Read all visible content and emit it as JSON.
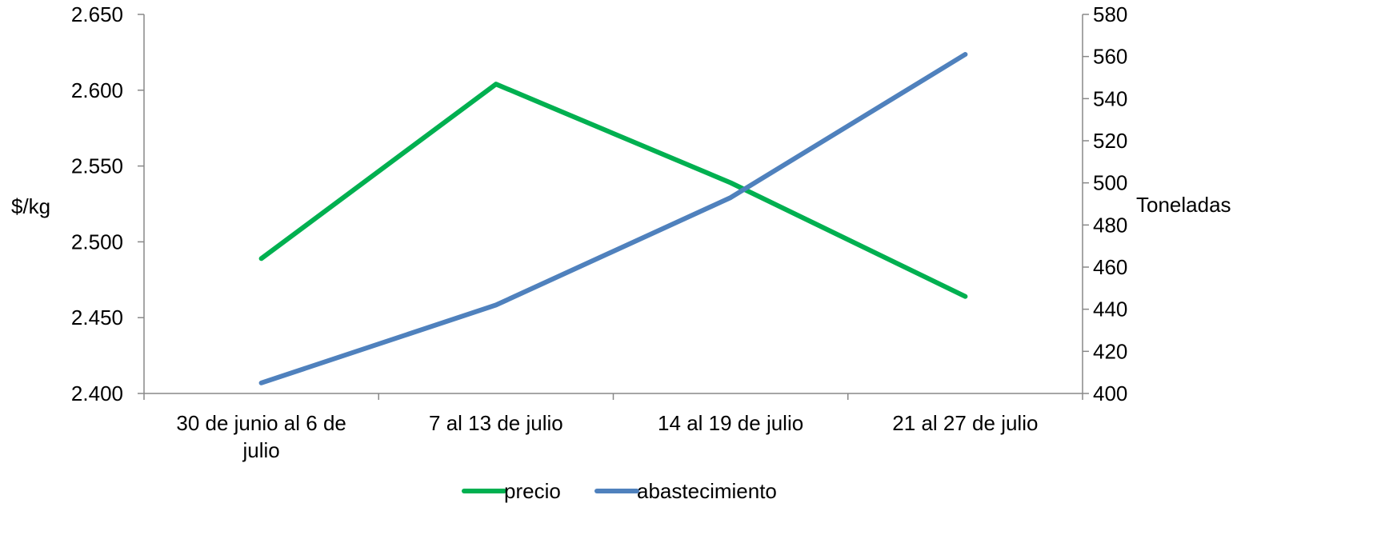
{
  "chart_data": {
    "type": "line",
    "categories": [
      "30 de junio al 6 de julio",
      "7 al 13 de julio",
      "14 al 19 de julio",
      "21 al 27 de julio"
    ],
    "category_lines": [
      [
        "30 de junio al 6 de",
        "julio"
      ],
      [
        "7 al 13 de julio"
      ],
      [
        "14 al 19 de julio"
      ],
      [
        "21 al 27 de julio"
      ]
    ],
    "y_left": {
      "label": "$/kg",
      "range": [
        2400,
        2650
      ],
      "ticks": [
        2400,
        2450,
        2500,
        2550,
        2600,
        2650
      ],
      "tick_labels": [
        "2.400",
        "2.450",
        "2.500",
        "2.550",
        "2.600",
        "2.650"
      ]
    },
    "y_right": {
      "label": "Toneladas",
      "range": [
        400,
        580
      ],
      "ticks": [
        400,
        420,
        440,
        460,
        480,
        500,
        520,
        540,
        560,
        580
      ],
      "tick_labels": [
        "400",
        "420",
        "440",
        "460",
        "480",
        "500",
        "520",
        "540",
        "560",
        "580"
      ]
    },
    "series": [
      {
        "name": "precio",
        "axis": "left",
        "color": "#00B050",
        "values": [
          2489,
          2604,
          2539,
          2464
        ]
      },
      {
        "name": "abastecimiento",
        "axis": "right",
        "color": "#4F81BD",
        "values": [
          405,
          442,
          493,
          561
        ]
      }
    ],
    "grid": false,
    "legend_position": "bottom"
  }
}
